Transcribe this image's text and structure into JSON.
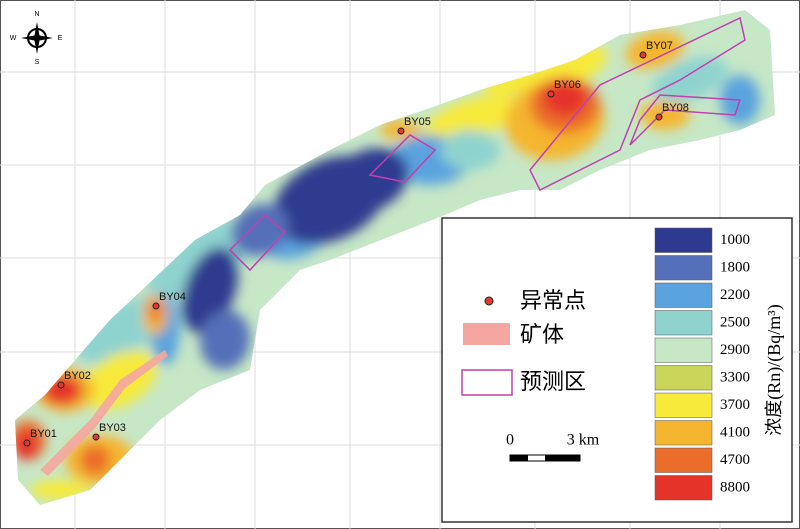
{
  "compass": {
    "n": "N",
    "e": "E",
    "s": "S",
    "w": "W"
  },
  "points": [
    "BY01",
    "BY02",
    "BY03",
    "BY04",
    "BY05",
    "BY06",
    "BY07",
    "BY08"
  ],
  "legend": {
    "items": [
      "异常点",
      "矿体",
      "预测区"
    ],
    "scale": {
      "start": "0",
      "end": "3 km"
    },
    "title": "浓度(Rn)/(Bq/m³)",
    "classes": [
      {
        "value": 1000,
        "color": "#2e3a8f"
      },
      {
        "value": 1800,
        "color": "#5470b8"
      },
      {
        "value": 2200,
        "color": "#5aa3de"
      },
      {
        "value": 2500,
        "color": "#8fd3cf"
      },
      {
        "value": 2900,
        "color": "#c7e8c7"
      },
      {
        "value": 3300,
        "color": "#c9d65a"
      },
      {
        "value": 3700,
        "color": "#f7ea3b"
      },
      {
        "value": 4100,
        "color": "#f5b52e"
      },
      {
        "value": 4700,
        "color": "#ea6d2b"
      },
      {
        "value": 8800,
        "color": "#e5332a"
      }
    ]
  }
}
